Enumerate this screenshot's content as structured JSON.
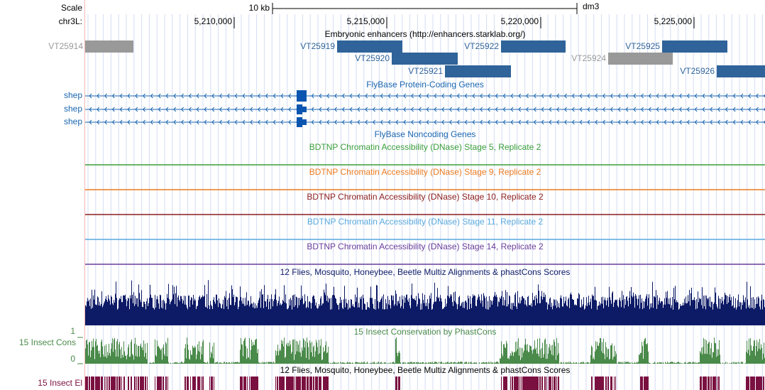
{
  "ruler": {
    "scale_label": "Scale",
    "scale_span": "10 kb",
    "assembly": "dm3",
    "chrom": "chr3L:",
    "ticks": [
      "5,210,000",
      "5,215,000",
      "5,220,000",
      "5,225,000"
    ]
  },
  "enhancers": {
    "title": "Embryonic enhancers (http://enhancers.starklab.org/)",
    "items": [
      "VT25914",
      "VT25919",
      "VT25920",
      "VT25921",
      "VT25922",
      "VT25924",
      "VT25925",
      "VT25926"
    ]
  },
  "protein_genes": {
    "title": "FlyBase Protein-Coding Genes",
    "items": [
      "shep",
      "shep",
      "shep"
    ]
  },
  "noncoding_genes": {
    "title": "FlyBase Noncoding Genes"
  },
  "dnase_tracks": [
    "BDTNP Chromatin Accessibility (DNase) Stage 5, Replicate 2",
    "BDTNP Chromatin Accessibility (DNase) Stage 9, Replicate 2",
    "BDTNP Chromatin Accessibility (DNase) Stage 10, Replicate 2",
    "BDTNP Chromatin Accessibility (DNase) Stage 11, Replicate 2",
    "BDTNP Chromatin Accessibility (DNase) Stage 14, Replicate 2"
  ],
  "multiz": {
    "title": "12 Flies, Mosquito, Honeybee, Beetle Multiz Alignments & phastCons Scores"
  },
  "phastcons": {
    "title": "15 Insect Conservation by PhastCons",
    "label": "15 Insect Cons",
    "max_label": "1",
    "min_label": "0"
  },
  "elements": {
    "title": "12 Flies, Mosquito, Honeybee, Beetle Multiz Alignments & phastCons Scores",
    "label": "15 Insect El"
  }
}
